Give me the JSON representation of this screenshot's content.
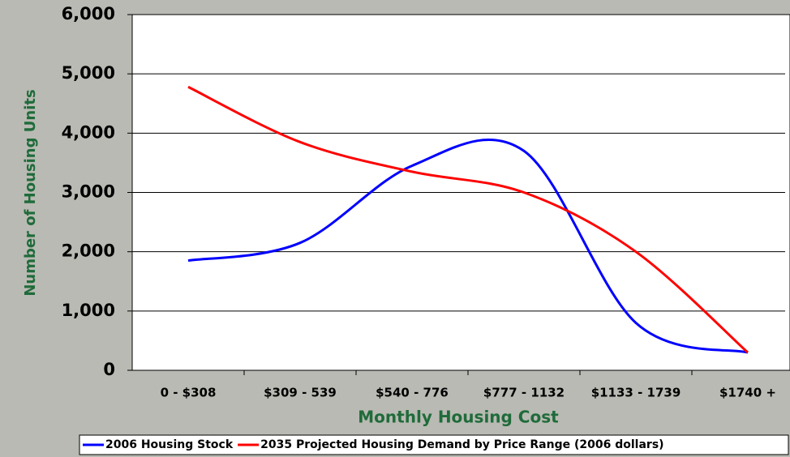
{
  "chart_data": {
    "type": "line",
    "categories": [
      "0 - $308",
      "$309 - 539",
      "$540 - 776",
      "$777 - 1132",
      "$1133 - 1739",
      "$1740 +"
    ],
    "series": [
      {
        "name": "2006 Housing Stock",
        "color": "#0000ff",
        "values": [
          1850,
          2150,
          3450,
          3700,
          800,
          300
        ]
      },
      {
        "name": "2035 Projected Housing Demand by Price Range (2006 dollars)",
        "color": "#ff0000",
        "values": [
          4780,
          3850,
          3350,
          3000,
          2000,
          300
        ]
      }
    ],
    "xlabel": "Monthly Housing Cost",
    "ylabel": "Number of Housing Units",
    "ylim": [
      0,
      6000
    ],
    "yticks": [
      0,
      {
        "value": 1000,
        "label": "1,000"
      },
      {
        "value": 2000,
        "label": "2,000"
      },
      {
        "value": 3000,
        "label": "3,000"
      },
      {
        "value": 4000,
        "label": "4,000"
      },
      {
        "value": 5000,
        "label": "5,000"
      },
      {
        "value": 6000,
        "label": "6,000"
      }
    ],
    "grid": true,
    "smooth": true,
    "legend": "bottom"
  }
}
